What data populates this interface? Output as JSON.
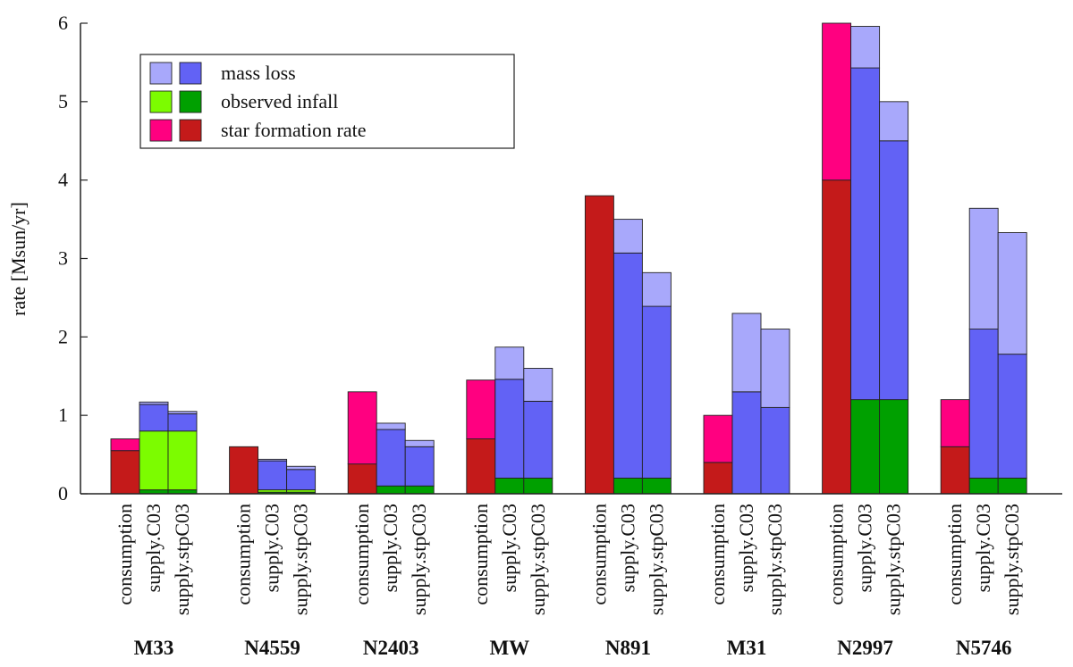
{
  "chart_data": {
    "type": "bar",
    "stacked": true,
    "ylabel": "rate [Msun/yr]",
    "ylim": [
      0,
      6
    ],
    "yticks": [
      "0",
      "1",
      "2",
      "3",
      "4",
      "5",
      "6"
    ],
    "grid": false,
    "legend_position": "top-left",
    "legend": [
      {
        "label": "mass loss",
        "light": "#a8a8fb",
        "dark": "#6262f5"
      },
      {
        "label": "observed infall",
        "light": "#7cfc00",
        "dark": "#00a000"
      },
      {
        "label": "star formation rate",
        "light": "#ff0080",
        "dark": "#c41a1a"
      }
    ],
    "bar_labels": [
      "consumption",
      "supply.C03",
      "supply.stpC03"
    ],
    "groups": [
      {
        "name": "M33",
        "bars": [
          {
            "segments": [
              {
                "color": "#c41a1a",
                "value": 0.55
              },
              {
                "color": "#ff0080",
                "value": 0.15
              }
            ]
          },
          {
            "segments": [
              {
                "color": "#00a000",
                "value": 0.05
              },
              {
                "color": "#7cfc00",
                "value": 0.75
              },
              {
                "color": "#6262f5",
                "value": 0.34
              },
              {
                "color": "#a8a8fb",
                "value": 0.03
              }
            ]
          },
          {
            "segments": [
              {
                "color": "#00a000",
                "value": 0.05
              },
              {
                "color": "#7cfc00",
                "value": 0.75
              },
              {
                "color": "#6262f5",
                "value": 0.22
              },
              {
                "color": "#a8a8fb",
                "value": 0.03
              }
            ]
          }
        ]
      },
      {
        "name": "N4559",
        "bars": [
          {
            "segments": [
              {
                "color": "#c41a1a",
                "value": 0.6
              }
            ]
          },
          {
            "segments": [
              {
                "color": "#00a000",
                "value": 0.02
              },
              {
                "color": "#7cfc00",
                "value": 0.03
              },
              {
                "color": "#6262f5",
                "value": 0.37
              },
              {
                "color": "#a8a8fb",
                "value": 0.02
              }
            ]
          },
          {
            "segments": [
              {
                "color": "#00a000",
                "value": 0.02
              },
              {
                "color": "#7cfc00",
                "value": 0.03
              },
              {
                "color": "#6262f5",
                "value": 0.26
              },
              {
                "color": "#a8a8fb",
                "value": 0.04
              }
            ]
          }
        ]
      },
      {
        "name": "N2403",
        "bars": [
          {
            "segments": [
              {
                "color": "#c41a1a",
                "value": 0.38
              },
              {
                "color": "#ff0080",
                "value": 0.92
              }
            ]
          },
          {
            "segments": [
              {
                "color": "#00a000",
                "value": 0.1
              },
              {
                "color": "#6262f5",
                "value": 0.72
              },
              {
                "color": "#a8a8fb",
                "value": 0.08
              }
            ]
          },
          {
            "segments": [
              {
                "color": "#00a000",
                "value": 0.1
              },
              {
                "color": "#6262f5",
                "value": 0.5
              },
              {
                "color": "#a8a8fb",
                "value": 0.08
              }
            ]
          }
        ]
      },
      {
        "name": "MW",
        "bars": [
          {
            "segments": [
              {
                "color": "#c41a1a",
                "value": 0.7
              },
              {
                "color": "#ff0080",
                "value": 0.75
              }
            ]
          },
          {
            "segments": [
              {
                "color": "#00a000",
                "value": 0.2
              },
              {
                "color": "#6262f5",
                "value": 1.26
              },
              {
                "color": "#a8a8fb",
                "value": 0.41
              }
            ]
          },
          {
            "segments": [
              {
                "color": "#00a000",
                "value": 0.2
              },
              {
                "color": "#6262f5",
                "value": 0.98
              },
              {
                "color": "#a8a8fb",
                "value": 0.42
              }
            ]
          }
        ]
      },
      {
        "name": "N891",
        "bars": [
          {
            "segments": [
              {
                "color": "#c41a1a",
                "value": 3.8
              }
            ]
          },
          {
            "segments": [
              {
                "color": "#00a000",
                "value": 0.2
              },
              {
                "color": "#6262f5",
                "value": 2.87
              },
              {
                "color": "#a8a8fb",
                "value": 0.43
              }
            ]
          },
          {
            "segments": [
              {
                "color": "#00a000",
                "value": 0.2
              },
              {
                "color": "#6262f5",
                "value": 2.19
              },
              {
                "color": "#a8a8fb",
                "value": 0.43
              }
            ]
          }
        ]
      },
      {
        "name": "M31",
        "bars": [
          {
            "segments": [
              {
                "color": "#c41a1a",
                "value": 0.4
              },
              {
                "color": "#ff0080",
                "value": 0.6
              }
            ]
          },
          {
            "segments": [
              {
                "color": "#6262f5",
                "value": 1.3
              },
              {
                "color": "#a8a8fb",
                "value": 1.0
              }
            ]
          },
          {
            "segments": [
              {
                "color": "#6262f5",
                "value": 1.1
              },
              {
                "color": "#a8a8fb",
                "value": 1.0
              }
            ]
          }
        ]
      },
      {
        "name": "N2997",
        "bars": [
          {
            "segments": [
              {
                "color": "#c41a1a",
                "value": 4.0
              },
              {
                "color": "#ff0080",
                "value": 2.0
              }
            ]
          },
          {
            "segments": [
              {
                "color": "#00a000",
                "value": 1.2
              },
              {
                "color": "#6262f5",
                "value": 4.23
              },
              {
                "color": "#a8a8fb",
                "value": 0.53
              }
            ]
          },
          {
            "segments": [
              {
                "color": "#00a000",
                "value": 1.2
              },
              {
                "color": "#6262f5",
                "value": 3.3
              },
              {
                "color": "#a8a8fb",
                "value": 0.5
              }
            ]
          }
        ]
      },
      {
        "name": "N5746",
        "bars": [
          {
            "segments": [
              {
                "color": "#c41a1a",
                "value": 0.6
              },
              {
                "color": "#ff0080",
                "value": 0.6
              }
            ]
          },
          {
            "segments": [
              {
                "color": "#00a000",
                "value": 0.2
              },
              {
                "color": "#6262f5",
                "value": 1.9
              },
              {
                "color": "#a8a8fb",
                "value": 1.54
              }
            ]
          },
          {
            "segments": [
              {
                "color": "#00a000",
                "value": 0.2
              },
              {
                "color": "#6262f5",
                "value": 1.58
              },
              {
                "color": "#a8a8fb",
                "value": 1.55
              }
            ]
          }
        ]
      }
    ]
  }
}
